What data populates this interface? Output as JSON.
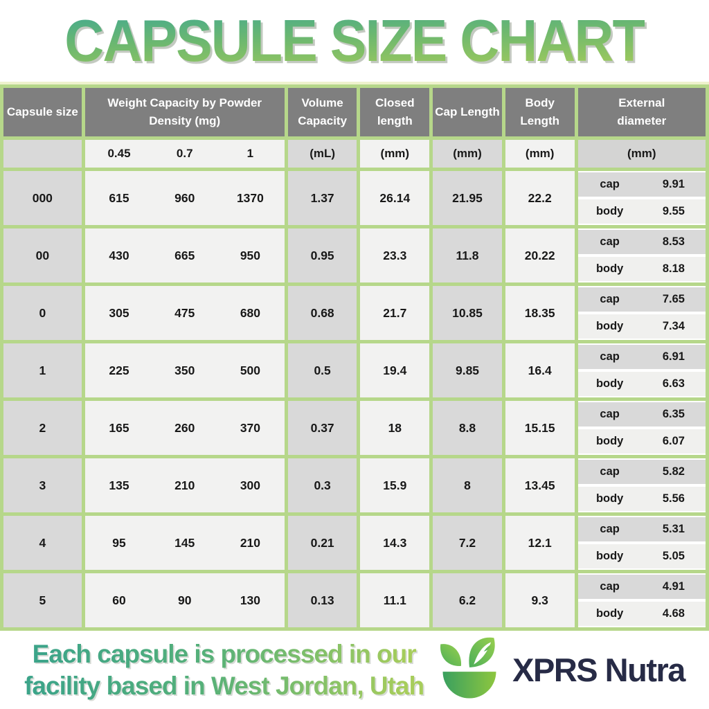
{
  "page": {
    "title": "CAPSULE SIZE CHART"
  },
  "colors": {
    "border_green": "#b6d78a",
    "pale_top_strip": "#eef2cd",
    "header_gray": "#7f7f7f",
    "cell_gray": "#d9d9d9",
    "cell_light": "#f2f2f1",
    "title_gradient_top": "#46aa8d",
    "title_gradient_bottom": "#a6cc59",
    "brand_navy": "#272b46",
    "logo_green_dark": "#3aa05f",
    "logo_green_light": "#8dc63f"
  },
  "table": {
    "headers": {
      "capsule_size": "Capsule size",
      "weight": "Weight Capacity by Powder Density (mg)",
      "volume": "Volume Capacity",
      "closed": "Closed length",
      "cap": "Cap Length",
      "body": "Body Length",
      "external": "External diameter"
    },
    "subheaders": {
      "densities": [
        "0.45",
        "0.7",
        "1"
      ],
      "volume_unit": "(mL)",
      "closed_unit": "(mm)",
      "cap_unit": "(mm)",
      "body_unit": "(mm)",
      "external_unit": "(mm)"
    },
    "ext_labels": {
      "cap": "cap",
      "body": "body"
    }
  },
  "chart_data": {
    "type": "table",
    "title": "CAPSULE SIZE CHART",
    "columns": [
      "Capsule size",
      "Weight Capacity at 0.45 Powder Density (mg)",
      "Weight Capacity at 0.7 Powder Density (mg)",
      "Weight Capacity at 1 Powder Density (mg)",
      "Volume Capacity (mL)",
      "Closed length (mm)",
      "Cap Length (mm)",
      "Body Length (mm)",
      "External diameter cap (mm)",
      "External diameter body (mm)"
    ],
    "rows": [
      [
        "000",
        "615",
        "960",
        "1370",
        "1.37",
        "26.14",
        "21.95",
        "22.2",
        "9.91",
        "9.55"
      ],
      [
        "00",
        "430",
        "665",
        "950",
        "0.95",
        "23.3",
        "11.8",
        "20.22",
        "8.53",
        "8.18"
      ],
      [
        "0",
        "305",
        "475",
        "680",
        "0.68",
        "21.7",
        "10.85",
        "18.35",
        "7.65",
        "7.34"
      ],
      [
        "1",
        "225",
        "350",
        "500",
        "0.5",
        "19.4",
        "9.85",
        "16.4",
        "6.91",
        "6.63"
      ],
      [
        "2",
        "165",
        "260",
        "370",
        "0.37",
        "18",
        "8.8",
        "15.15",
        "6.35",
        "6.07"
      ],
      [
        "3",
        "135",
        "210",
        "300",
        "0.3",
        "15.9",
        "8",
        "13.45",
        "5.82",
        "5.56"
      ],
      [
        "4",
        "95",
        "145",
        "210",
        "0.21",
        "14.3",
        "7.2",
        "12.1",
        "5.31",
        "5.05"
      ],
      [
        "5",
        "60",
        "90",
        "130",
        "0.13",
        "11.1",
        "6.2",
        "9.3",
        "4.91",
        "4.68"
      ]
    ]
  },
  "footer": {
    "line1": "Each capsule is processed in our",
    "line2": "facility based in West Jordan, Utah",
    "brand": "XPRS Nutra",
    "logo_icon": "mortar-leaves-icon"
  }
}
